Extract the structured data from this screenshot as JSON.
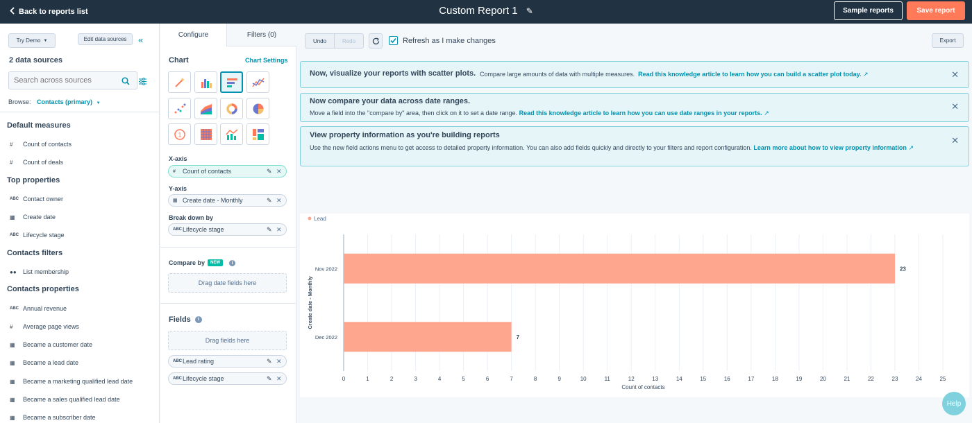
{
  "topbar": {
    "back_label": "Back to reports list",
    "report_title": "Custom Report 1",
    "sample_label": "Sample reports",
    "save_label": "Save report",
    "edit_icon": "pencil-icon"
  },
  "left": {
    "try_demo": "Try Demo",
    "edit_sources": "Edit data sources",
    "sources_count": "2 data sources",
    "search_placeholder": "Search across sources",
    "browse_label": "Browse:",
    "browse_value": "Contacts (primary)",
    "sections": [
      {
        "title": "Default measures",
        "items": [
          {
            "icon": "#",
            "label": "Count of contacts"
          },
          {
            "icon": "#",
            "label": "Count of deals"
          }
        ]
      },
      {
        "title": "Top properties",
        "items": [
          {
            "icon": "ABC",
            "label": "Contact owner"
          },
          {
            "icon": "cal",
            "label": "Create date"
          },
          {
            "icon": "ABC",
            "label": "Lifecycle stage"
          }
        ]
      },
      {
        "title": "Contacts filters",
        "items": [
          {
            "icon": "grp",
            "label": "List membership"
          }
        ]
      },
      {
        "title": "Contacts properties",
        "items": [
          {
            "icon": "ABC",
            "label": "Annual revenue"
          },
          {
            "icon": "#",
            "label": "Average page views"
          },
          {
            "icon": "cal",
            "label": "Became a customer date"
          },
          {
            "icon": "cal",
            "label": "Became a lead date"
          },
          {
            "icon": "cal",
            "label": "Became a marketing qualified lead date"
          },
          {
            "icon": "cal",
            "label": "Became a sales qualified lead date"
          },
          {
            "icon": "cal",
            "label": "Became a subscriber date"
          }
        ]
      }
    ]
  },
  "mid": {
    "tab_configure": "Configure",
    "tab_filters": "Filters (0)",
    "chart_label": "Chart",
    "chart_settings": "Chart Settings",
    "x_axis_label": "X-axis",
    "x_axis_value": "Count of contacts",
    "y_axis_label": "Y-axis",
    "y_axis_value": "Create date - Monthly",
    "breakdown_label": "Break down by",
    "breakdown_value": "Lifecycle stage",
    "compare_label": "Compare by",
    "new_badge": "NEW",
    "compare_drop": "Drag date fields here",
    "fields_label": "Fields",
    "fields_drop": "Drag fields here",
    "field_1": "Lead rating",
    "field_2": "Lifecycle stage"
  },
  "toolbar": {
    "undo": "Undo",
    "redo": "Redo",
    "refresh_label": "Refresh as I make changes",
    "export": "Export"
  },
  "banners": {
    "b1_title": "Now, visualize your reports with scatter plots.",
    "b1_text": "Compare large amounts of data with multiple measures.",
    "b1_link": "Read this knowledge article to learn how you can build a scatter plot today.",
    "b2_title": "Now compare your data across date ranges.",
    "b2_text": "Move a field into the \"compare by\" area, then click on it to set a date range.",
    "b2_link": "Read this knowledge article to learn how you can use date ranges in your reports.",
    "b3_title": "View property information as you're building reports",
    "b3_text": "Use the new field actions menu to get access to detailed property information. You can also add fields quickly and directly to your filters and report configuration.",
    "b3_link": "Learn more about how to view property information"
  },
  "help_label": "Help",
  "colors": {
    "accent": "#ff7a59",
    "bar": "#ffa68f",
    "nav": "#213343",
    "teal": "#0091ae"
  },
  "chart_data": {
    "type": "bar",
    "orientation": "horizontal",
    "categories": [
      "Nov 2022",
      "Dec 2022"
    ],
    "series": [
      {
        "name": "Lead",
        "values": [
          23,
          7
        ]
      }
    ],
    "xlabel": "Count of contacts",
    "ylabel": "Create date - Monthly",
    "xlim": [
      0,
      25
    ],
    "xticks": [
      0,
      1,
      2,
      3,
      4,
      5,
      6,
      7,
      8,
      9,
      10,
      11,
      12,
      13,
      14,
      15,
      16,
      17,
      18,
      19,
      20,
      21,
      22,
      23,
      24,
      25
    ],
    "legend_position": "top-left",
    "grid": true
  }
}
